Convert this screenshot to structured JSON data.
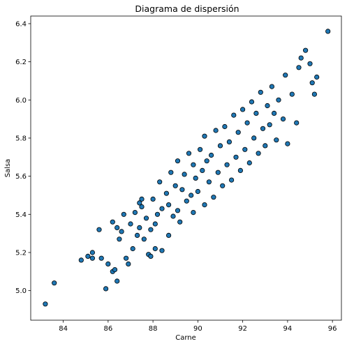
{
  "chart_data": {
    "type": "scatter",
    "title": "Diagrama de dispersión",
    "xlabel": "Carne",
    "ylabel": "Salsa",
    "xlim": [
      82.55,
      96.4
    ],
    "ylim": [
      4.845,
      6.44
    ],
    "xticks": [
      84,
      86,
      88,
      90,
      92,
      94,
      96
    ],
    "xtick_labels": [
      "84",
      "86",
      "88",
      "90",
      "92",
      "94",
      "96"
    ],
    "yticks": [
      5.0,
      5.2,
      5.4,
      5.6,
      5.8,
      6.0,
      6.2,
      6.4
    ],
    "ytick_labels": [
      "5.0",
      "5.2",
      "5.4",
      "5.6",
      "5.8",
      "6.0",
      "6.2",
      "6.4"
    ],
    "grid": false,
    "legend": "none",
    "marker_color": "#1f77b4",
    "marker_edge_color": "#000000",
    "series": [
      {
        "points": [
          [
            83.2,
            4.93
          ],
          [
            83.6,
            5.04
          ],
          [
            84.8,
            5.16
          ],
          [
            85.1,
            5.18
          ],
          [
            85.3,
            5.17
          ],
          [
            85.3,
            5.2
          ],
          [
            85.6,
            5.32
          ],
          [
            85.7,
            5.17
          ],
          [
            85.9,
            5.01
          ],
          [
            86.0,
            5.14
          ],
          [
            86.2,
            5.1
          ],
          [
            86.3,
            5.11
          ],
          [
            86.2,
            5.36
          ],
          [
            86.4,
            5.05
          ],
          [
            86.4,
            5.33
          ],
          [
            86.5,
            5.27
          ],
          [
            86.6,
            5.31
          ],
          [
            86.7,
            5.4
          ],
          [
            86.8,
            5.17
          ],
          [
            86.9,
            5.14
          ],
          [
            87.0,
            5.35
          ],
          [
            87.1,
            5.22
          ],
          [
            87.2,
            5.41
          ],
          [
            87.3,
            5.29
          ],
          [
            87.4,
            5.46
          ],
          [
            87.5,
            5.44
          ],
          [
            87.6,
            5.27
          ],
          [
            87.7,
            5.38
          ],
          [
            87.8,
            5.19
          ],
          [
            87.9,
            5.18
          ],
          [
            87.4,
            5.33
          ],
          [
            87.5,
            5.48
          ],
          [
            87.9,
            5.32
          ],
          [
            88.0,
            5.48
          ],
          [
            88.1,
            5.35
          ],
          [
            88.1,
            5.22
          ],
          [
            88.2,
            5.4
          ],
          [
            88.3,
            5.57
          ],
          [
            88.4,
            5.43
          ],
          [
            88.4,
            5.21
          ],
          [
            88.6,
            5.51
          ],
          [
            88.7,
            5.45
          ],
          [
            88.7,
            5.29
          ],
          [
            88.8,
            5.62
          ],
          [
            88.9,
            5.39
          ],
          [
            89.0,
            5.55
          ],
          [
            89.1,
            5.42
          ],
          [
            89.1,
            5.68
          ],
          [
            89.2,
            5.36
          ],
          [
            89.3,
            5.53
          ],
          [
            89.4,
            5.61
          ],
          [
            89.5,
            5.47
          ],
          [
            89.6,
            5.72
          ],
          [
            89.7,
            5.5
          ],
          [
            89.8,
            5.41
          ],
          [
            89.8,
            5.66
          ],
          [
            89.9,
            5.59
          ],
          [
            90.0,
            5.52
          ],
          [
            90.1,
            5.74
          ],
          [
            90.2,
            5.63
          ],
          [
            90.3,
            5.45
          ],
          [
            90.3,
            5.81
          ],
          [
            90.4,
            5.68
          ],
          [
            90.5,
            5.57
          ],
          [
            90.6,
            5.71
          ],
          [
            90.7,
            5.49
          ],
          [
            90.8,
            5.84
          ],
          [
            90.9,
            5.62
          ],
          [
            91.0,
            5.76
          ],
          [
            91.1,
            5.55
          ],
          [
            91.2,
            5.86
          ],
          [
            91.3,
            5.66
          ],
          [
            91.4,
            5.78
          ],
          [
            91.5,
            5.58
          ],
          [
            91.6,
            5.92
          ],
          [
            91.7,
            5.7
          ],
          [
            91.8,
            5.83
          ],
          [
            91.9,
            5.63
          ],
          [
            92.0,
            5.95
          ],
          [
            92.1,
            5.74
          ],
          [
            92.2,
            5.88
          ],
          [
            92.3,
            5.67
          ],
          [
            92.4,
            5.99
          ],
          [
            92.5,
            5.8
          ],
          [
            92.6,
            5.93
          ],
          [
            92.7,
            5.72
          ],
          [
            92.8,
            6.04
          ],
          [
            92.9,
            5.85
          ],
          [
            93.0,
            5.76
          ],
          [
            93.1,
            5.97
          ],
          [
            93.2,
            5.87
          ],
          [
            93.3,
            6.07
          ],
          [
            93.4,
            5.93
          ],
          [
            93.5,
            5.79
          ],
          [
            93.6,
            6.0
          ],
          [
            93.8,
            5.9
          ],
          [
            93.9,
            6.13
          ],
          [
            94.0,
            5.77
          ],
          [
            94.2,
            6.03
          ],
          [
            94.4,
            5.88
          ],
          [
            94.5,
            6.17
          ],
          [
            94.6,
            6.22
          ],
          [
            94.8,
            6.26
          ],
          [
            95.0,
            6.19
          ],
          [
            95.1,
            6.09
          ],
          [
            95.2,
            6.03
          ],
          [
            95.3,
            6.12
          ],
          [
            95.8,
            6.36
          ]
        ]
      }
    ]
  }
}
